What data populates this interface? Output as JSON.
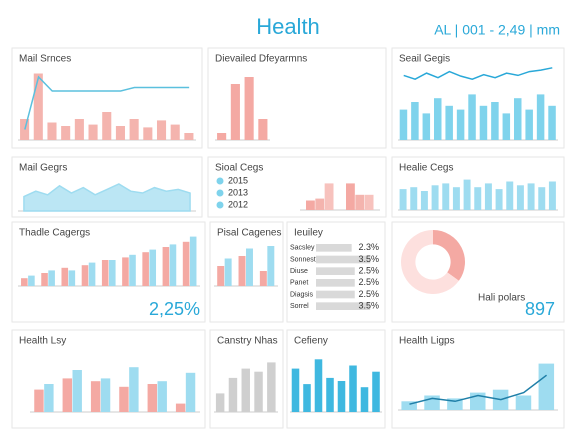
{
  "header": {
    "title": "Health",
    "subtitle": "AL | 001 - 2,49 | mm"
  },
  "chart_data": [
    {
      "type": "bar",
      "title": "Mail Srnces",
      "ylim": [
        0,
        100
      ],
      "series": [
        {
          "type": "bar",
          "color": "#f4b4ae",
          "values": [
            30,
            95,
            25,
            20,
            30,
            22,
            40,
            20,
            30,
            18,
            28,
            22,
            10
          ]
        },
        {
          "type": "line",
          "color": "#5bc0de",
          "values": [
            15,
            90,
            70,
            70,
            70,
            70,
            70,
            70,
            75,
            75,
            75,
            75,
            75
          ]
        }
      ]
    },
    {
      "type": "bar",
      "title": "Dievailed Dfeyarmns",
      "ylim": [
        0,
        100
      ],
      "series": [
        {
          "color": "#f4a9a3",
          "values": [
            10,
            80,
            90,
            30
          ]
        }
      ]
    },
    {
      "type": "bar",
      "title": "Seail Gegis",
      "ylim": [
        0,
        100
      ],
      "series": [
        {
          "type": "bar",
          "color": "#7fd3ec",
          "values": [
            40,
            50,
            35,
            55,
            45,
            40,
            60,
            45,
            50,
            35,
            55,
            40,
            60,
            45
          ]
        },
        {
          "type": "line",
          "color": "#29a8d8",
          "values": [
            85,
            80,
            88,
            82,
            90,
            84,
            80,
            86,
            82,
            88,
            85,
            90,
            92,
            95
          ]
        }
      ]
    },
    {
      "type": "area",
      "title": "Mail Gegrs",
      "ylim": [
        0,
        100
      ],
      "series": [
        {
          "color": "#9edcf0",
          "values": [
            40,
            55,
            45,
            70,
            50,
            65,
            45,
            60,
            75,
            55,
            50,
            65,
            55,
            60,
            50
          ]
        }
      ]
    },
    {
      "type": "bar",
      "title": "Sioal Cegs",
      "ylim": [
        0,
        100
      ],
      "legend": "left",
      "series": [
        {
          "name": "2015",
          "color": "#f4a9a3",
          "values": [
            25,
            70
          ]
        },
        {
          "name": "2013",
          "color": "#f4b4ae",
          "values": [
            30,
            40
          ]
        },
        {
          "name": "2012",
          "color": "#f7c2bd",
          "values": [
            70,
            40
          ]
        }
      ]
    },
    {
      "type": "bar",
      "title": "Healie Cegs",
      "ylim": [
        0,
        100
      ],
      "series": [
        {
          "color": "#9edcf0",
          "values": [
            55,
            60,
            50,
            65,
            70,
            60,
            80,
            60,
            70,
            55,
            75,
            65,
            70,
            60,
            75
          ]
        }
      ]
    },
    {
      "type": "bar",
      "title": "Thadle Cagergs",
      "ylim": [
        0,
        100
      ],
      "kpi": "2,25%",
      "series": [
        {
          "color": "#f4a9a3",
          "values": [
            15,
            25,
            35,
            40,
            50,
            55,
            65,
            75,
            85
          ]
        },
        {
          "color": "#9edcf0",
          "values": [
            20,
            30,
            30,
            45,
            50,
            60,
            70,
            80,
            95
          ]
        }
      ]
    },
    {
      "type": "bar",
      "title": "Pisal Cagenes",
      "ylim": [
        0,
        100
      ],
      "series": [
        {
          "color": "#f4a9a3",
          "values": [
            40,
            60,
            30
          ]
        },
        {
          "color": "#9edcf0",
          "values": [
            55,
            75,
            80
          ]
        }
      ]
    },
    {
      "type": "hbar",
      "title": "Ieuiley",
      "xlim": [
        0,
        4
      ],
      "categories": [
        "Sacsley",
        "Sonnestr",
        "Diuse",
        "Panet",
        "Diagsis",
        "Sorrel"
      ],
      "values": [
        2.3,
        3.5,
        2.5,
        2.5,
        2.5,
        3.5
      ],
      "value_labels": [
        "2.3%",
        "3.5%",
        "2.5%",
        "2.5%",
        "2.5%",
        "3.5%"
      ],
      "color": "#d9d9d9"
    },
    {
      "type": "pie",
      "title": "Hali polars",
      "kpi": "897",
      "values": [
        35,
        65
      ],
      "colors": [
        "#f4a9a3",
        "#fde0de"
      ]
    },
    {
      "type": "bar",
      "title": "Health Lsy",
      "ylim": [
        0,
        100
      ],
      "series": [
        {
          "color": "#f4a9a3",
          "values": [
            40,
            60,
            55,
            45,
            50,
            15
          ]
        },
        {
          "color": "#9edcf0",
          "values": [
            50,
            75,
            60,
            80,
            55,
            70
          ]
        }
      ]
    },
    {
      "type": "bar",
      "title": "Canstry Nhas",
      "ylim": [
        0,
        100
      ],
      "series": [
        {
          "color": "#cfcfcf",
          "values": [
            30,
            55,
            70,
            65,
            80
          ]
        }
      ]
    },
    {
      "type": "bar",
      "title": "Cefieny",
      "ylim": [
        0,
        100
      ],
      "series": [
        {
          "color": "#3fb8e0",
          "values": [
            70,
            45,
            85,
            55,
            50,
            75,
            40,
            65
          ]
        }
      ]
    },
    {
      "type": "bar",
      "title": "Health Ligps",
      "ylim": [
        0,
        100
      ],
      "series": [
        {
          "type": "bar",
          "color": "#9edcf0",
          "values": [
            15,
            25,
            20,
            30,
            35,
            25,
            80
          ]
        },
        {
          "type": "line",
          "color": "#1f7fa8",
          "values": [
            10,
            20,
            15,
            25,
            18,
            30,
            60
          ]
        }
      ]
    }
  ]
}
